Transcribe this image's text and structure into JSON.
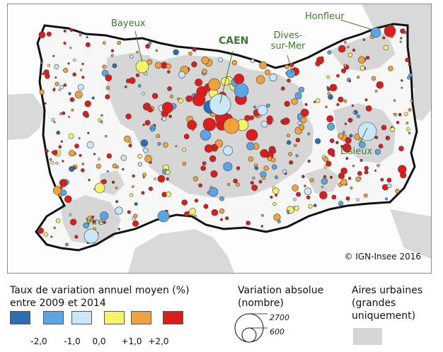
{
  "map": {
    "places": {
      "bayeux": "Bayeux",
      "honfleur": "Honfleur",
      "caen": "CAEN",
      "dives_line1": "Dives-",
      "dives_line2": "sur-Mer",
      "lisieux": "Lisieux",
      "vire": "Vire"
    },
    "copyright": "© IGN-Insee 2016"
  },
  "legend": {
    "rate": {
      "title_line1": "Taux de variation annuel moyen (%)",
      "title_line2": "entre 2009 et 2014",
      "classes": [
        {
          "color": "#2a6fb5"
        },
        {
          "color": "#5aa6e5"
        },
        {
          "color": "#c9e7f8"
        },
        {
          "color": "#f6f26a"
        },
        {
          "color": "#f0a33c"
        },
        {
          "color": "#e01b1b"
        }
      ],
      "ticks": [
        "-2,0",
        "-1,0",
        "0,0",
        "+1,0",
        "+2,0"
      ]
    },
    "absolute": {
      "title_line1": "Variation absolue",
      "title_line2": "(nombre)",
      "values": [
        "2700",
        "600"
      ]
    },
    "urban": {
      "title_line1": "Aires urbaines",
      "title_line2": "(grandes",
      "title_line3": "uniquement)",
      "color": "#d6d6d6"
    }
  }
}
